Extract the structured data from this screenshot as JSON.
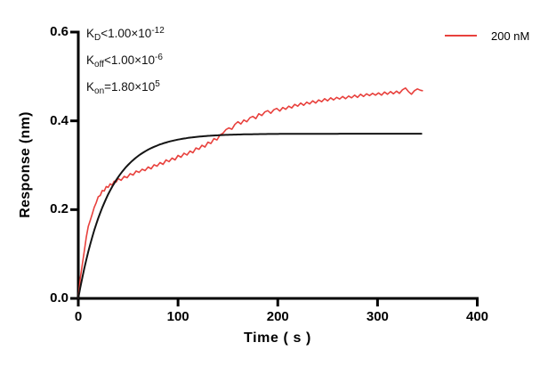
{
  "chart_data": {
    "type": "line",
    "title": "",
    "xlabel": "Time ( s )",
    "ylabel": "Response (nm)",
    "xlim": [
      0,
      400
    ],
    "ylim": [
      0,
      0.6
    ],
    "xticks": [
      0,
      100,
      200,
      300,
      400
    ],
    "xtick_labels": [
      "0",
      "100",
      "200",
      "300",
      "400"
    ],
    "yticks": [
      0,
      0.2,
      0.4,
      0.6
    ],
    "ytick_labels": [
      "0.0",
      "0.2",
      "0.4",
      "0.6"
    ],
    "grid": false,
    "axis_color": "#000000",
    "legend_position": "top-right",
    "legend": [
      {
        "label": "200 nM",
        "color": "#e8413d"
      }
    ],
    "annotation_lines": [
      {
        "text": "KD<1.00×10-12",
        "segments": [
          {
            "t": "K",
            "s": "n"
          },
          {
            "t": "D",
            "s": "sub"
          },
          {
            "t": "<1.00×10",
            "s": "n"
          },
          {
            "t": "-12",
            "s": "sup"
          }
        ]
      },
      {
        "text": "Koff<1.00×10-6",
        "segments": [
          {
            "t": "K",
            "s": "n"
          },
          {
            "t": "off",
            "s": "sub"
          },
          {
            "t": "<1.00×10",
            "s": "n"
          },
          {
            "t": "-6",
            "s": "sup"
          }
        ]
      },
      {
        "text": "Kon=1.80×105",
        "segments": [
          {
            "t": "K",
            "s": "n"
          },
          {
            "t": "on",
            "s": "sub"
          },
          {
            "t": "=1.80×10",
            "s": "n"
          },
          {
            "t": "5",
            "s": "sup"
          }
        ]
      }
    ],
    "series": [
      {
        "name": "200 nM",
        "kind": "measured",
        "color": "#e8413d",
        "points": [
          [
            0,
            0.0
          ],
          [
            2,
            0.045
          ],
          [
            4,
            0.076
          ],
          [
            6,
            0.106
          ],
          [
            8,
            0.138
          ],
          [
            10,
            0.162
          ],
          [
            12,
            0.176
          ],
          [
            14,
            0.19
          ],
          [
            16,
            0.205
          ],
          [
            18,
            0.216
          ],
          [
            20,
            0.229
          ],
          [
            22,
            0.232
          ],
          [
            24,
            0.243
          ],
          [
            26,
            0.242
          ],
          [
            28,
            0.252
          ],
          [
            30,
            0.25
          ],
          [
            32,
            0.258
          ],
          [
            34,
            0.255
          ],
          [
            36,
            0.264
          ],
          [
            38,
            0.262
          ],
          [
            40,
            0.27
          ],
          [
            43,
            0.266
          ],
          [
            46,
            0.275
          ],
          [
            49,
            0.272
          ],
          [
            52,
            0.281
          ],
          [
            55,
            0.278
          ],
          [
            58,
            0.287
          ],
          [
            61,
            0.284
          ],
          [
            64,
            0.291
          ],
          [
            67,
            0.288
          ],
          [
            70,
            0.296
          ],
          [
            73,
            0.292
          ],
          [
            76,
            0.301
          ],
          [
            79,
            0.298
          ],
          [
            82,
            0.306
          ],
          [
            85,
            0.302
          ],
          [
            88,
            0.312
          ],
          [
            91,
            0.308
          ],
          [
            94,
            0.316
          ],
          [
            97,
            0.312
          ],
          [
            100,
            0.322
          ],
          [
            103,
            0.318
          ],
          [
            106,
            0.327
          ],
          [
            109,
            0.323
          ],
          [
            112,
            0.332
          ],
          [
            115,
            0.328
          ],
          [
            118,
            0.339
          ],
          [
            121,
            0.336
          ],
          [
            124,
            0.345
          ],
          [
            127,
            0.341
          ],
          [
            130,
            0.352
          ],
          [
            133,
            0.349
          ],
          [
            136,
            0.36
          ],
          [
            139,
            0.357
          ],
          [
            142,
            0.368
          ],
          [
            145,
            0.372
          ],
          [
            148,
            0.38
          ],
          [
            151,
            0.384
          ],
          [
            154,
            0.381
          ],
          [
            157,
            0.392
          ],
          [
            160,
            0.398
          ],
          [
            163,
            0.393
          ],
          [
            166,
            0.402
          ],
          [
            169,
            0.398
          ],
          [
            172,
            0.407
          ],
          [
            175,
            0.41
          ],
          [
            178,
            0.405
          ],
          [
            181,
            0.416
          ],
          [
            184,
            0.412
          ],
          [
            187,
            0.42
          ],
          [
            190,
            0.423
          ],
          [
            193,
            0.417
          ],
          [
            196,
            0.425
          ],
          [
            199,
            0.428
          ],
          [
            202,
            0.422
          ],
          [
            205,
            0.43
          ],
          [
            208,
            0.426
          ],
          [
            211,
            0.433
          ],
          [
            214,
            0.429
          ],
          [
            217,
            0.437
          ],
          [
            220,
            0.433
          ],
          [
            223,
            0.44
          ],
          [
            226,
            0.435
          ],
          [
            229,
            0.442
          ],
          [
            232,
            0.438
          ],
          [
            235,
            0.445
          ],
          [
            238,
            0.44
          ],
          [
            241,
            0.447
          ],
          [
            244,
            0.443
          ],
          [
            247,
            0.45
          ],
          [
            250,
            0.445
          ],
          [
            253,
            0.452
          ],
          [
            256,
            0.447
          ],
          [
            259,
            0.453
          ],
          [
            262,
            0.449
          ],
          [
            265,
            0.455
          ],
          [
            268,
            0.45
          ],
          [
            271,
            0.456
          ],
          [
            274,
            0.452
          ],
          [
            277,
            0.458
          ],
          [
            280,
            0.453
          ],
          [
            283,
            0.46
          ],
          [
            286,
            0.455
          ],
          [
            289,
            0.461
          ],
          [
            292,
            0.457
          ],
          [
            295,
            0.462
          ],
          [
            298,
            0.458
          ],
          [
            301,
            0.463
          ],
          [
            304,
            0.458
          ],
          [
            307,
            0.465
          ],
          [
            310,
            0.46
          ],
          [
            313,
            0.466
          ],
          [
            316,
            0.461
          ],
          [
            319,
            0.467
          ],
          [
            322,
            0.462
          ],
          [
            325,
            0.47
          ],
          [
            328,
            0.474
          ],
          [
            331,
            0.466
          ],
          [
            334,
            0.46
          ],
          [
            337,
            0.468
          ],
          [
            340,
            0.472
          ],
          [
            343,
            0.469
          ],
          [
            345,
            0.468
          ]
        ]
      },
      {
        "name": "fit",
        "kind": "fit",
        "color": "#141414",
        "model": "plateau*(1-exp(-t/tau))",
        "plateau": 0.371,
        "tau": 30,
        "t_start": 0,
        "t_end": 345
      }
    ]
  }
}
